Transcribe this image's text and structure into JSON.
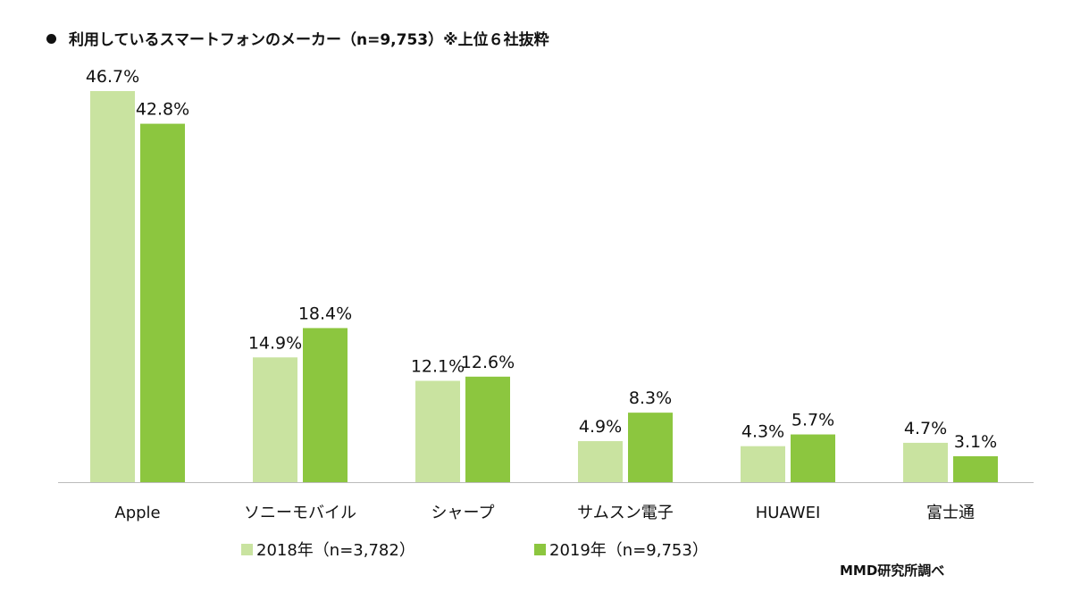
{
  "chart_data": {
    "type": "bar",
    "title": "利用しているスマートフォンのメーカー（n=9,753）※上位６社抜粋",
    "categories": [
      "Apple",
      "ソニーモバイル",
      "シャープ",
      "サムスン電子",
      "HUAWEI",
      "富士通"
    ],
    "series": [
      {
        "name": "2018年（n=3,782）",
        "color": "#c9e3a0",
        "values": [
          46.7,
          14.9,
          12.1,
          4.9,
          4.3,
          4.7
        ]
      },
      {
        "name": "2019年（n=9,753）",
        "color": "#8cc63f",
        "values": [
          42.8,
          18.4,
          12.6,
          8.3,
          5.7,
          3.1
        ]
      }
    ],
    "value_format": "%",
    "ylim": [
      0,
      46.7
    ],
    "grid": false,
    "legend_position": "bottom",
    "source": "MMD研究所調べ"
  }
}
